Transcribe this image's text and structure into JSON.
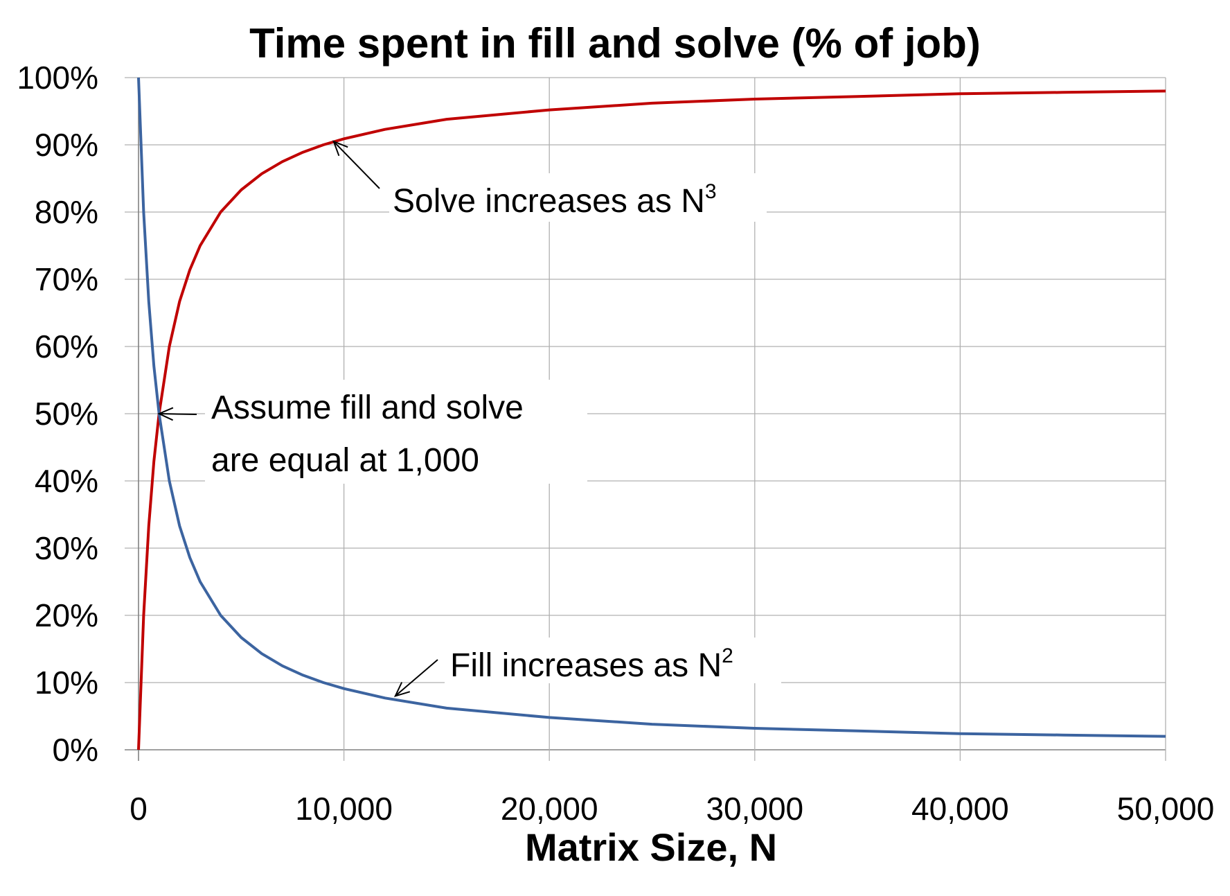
{
  "chart_data": {
    "type": "line",
    "title": "Time spent in fill and solve (% of job)",
    "xlabel": "Matrix Size, N",
    "ylabel": "",
    "xlim": [
      0,
      50000
    ],
    "ylim": [
      0,
      1
    ],
    "x_ticks": [
      0,
      10000,
      20000,
      30000,
      40000,
      50000
    ],
    "x_tick_labels": [
      "0",
      "10,000",
      "20,000",
      "30,000",
      "40,000",
      "50,000"
    ],
    "y_ticks": [
      0,
      0.1,
      0.2,
      0.3,
      0.4,
      0.5,
      0.6,
      0.7,
      0.8,
      0.9,
      1.0
    ],
    "y_tick_labels": [
      "0%",
      "10%",
      "20%",
      "30%",
      "40%",
      "50%",
      "60%",
      "70%",
      "80%",
      "90%",
      "100%"
    ],
    "grid": true,
    "legend": "none",
    "x": [
      0,
      250,
      500,
      750,
      1000,
      1500,
      2000,
      2500,
      3000,
      4000,
      5000,
      6000,
      7000,
      8000,
      9000,
      10000,
      12000,
      15000,
      20000,
      25000,
      30000,
      35000,
      40000,
      45000,
      50000
    ],
    "series": [
      {
        "color": "#c00000",
        "values": [
          0.0,
          0.2,
          0.333,
          0.429,
          0.5,
          0.6,
          0.667,
          0.714,
          0.75,
          0.8,
          0.833,
          0.857,
          0.875,
          0.889,
          0.9,
          0.909,
          0.923,
          0.938,
          0.952,
          0.962,
          0.968,
          0.972,
          0.976,
          0.978,
          0.98
        ]
      },
      {
        "color": "#3c64a0",
        "values": [
          1.0,
          0.8,
          0.667,
          0.571,
          0.5,
          0.4,
          0.333,
          0.286,
          0.25,
          0.2,
          0.167,
          0.143,
          0.125,
          0.111,
          0.1,
          0.091,
          0.077,
          0.062,
          0.048,
          0.038,
          0.032,
          0.028,
          0.024,
          0.022,
          0.02
        ]
      }
    ],
    "annotations": [
      {
        "id": "solve",
        "text": "Solve increases as N",
        "sup": "3",
        "target_x": 9500,
        "target_y": 0.905
      },
      {
        "id": "equal",
        "lines": [
          "Assume fill and solve",
          "are equal at 1,000"
        ],
        "target_x": 1000,
        "target_y": 0.5
      },
      {
        "id": "fill",
        "text": "Fill increases as N",
        "sup": "2",
        "target_x": 12500,
        "target_y": 0.08
      }
    ]
  }
}
